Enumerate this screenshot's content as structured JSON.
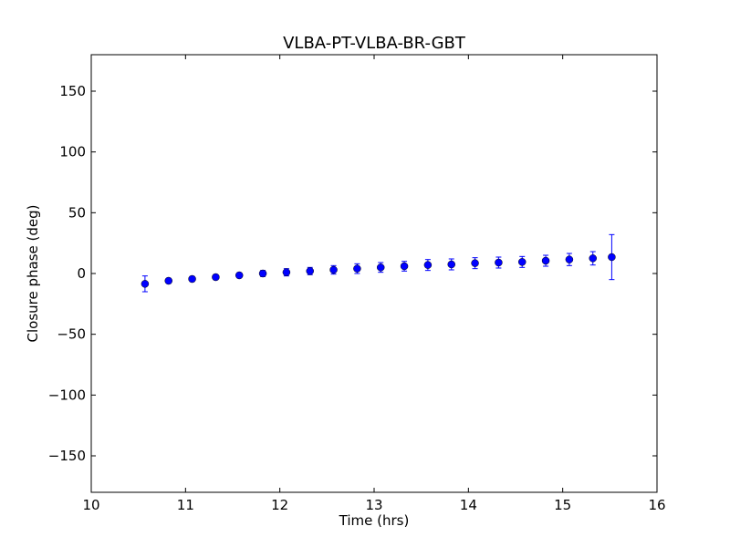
{
  "chart_data": {
    "type": "scatter",
    "title": "VLBA-PT-VLBA-BR-GBT",
    "xlabel": "Time (hrs)",
    "ylabel": "Closure phase (deg)",
    "xlim": [
      10,
      16
    ],
    "ylim": [
      -180,
      180
    ],
    "xticks": [
      10,
      11,
      12,
      13,
      14,
      15,
      16
    ],
    "xtick_labels": [
      "10",
      "11",
      "12",
      "13",
      "14",
      "15",
      "16"
    ],
    "yticks": [
      -150,
      -100,
      -50,
      0,
      50,
      100,
      150
    ],
    "ytick_labels": [
      "−150",
      "−100",
      "−50",
      "0",
      "50",
      "100",
      "150"
    ],
    "grid": false,
    "legend": "none",
    "marker_color": "#0000ff",
    "errorbar_color": "#0000ff",
    "series": [
      {
        "x": [
          10.57,
          10.82,
          11.07,
          11.32,
          11.57,
          11.82,
          12.07,
          12.32,
          12.57,
          12.82,
          13.07,
          13.32,
          13.57,
          13.82,
          14.07,
          14.32,
          14.57,
          14.82,
          15.07,
          15.32,
          15.52
        ],
        "y": [
          -8.5,
          -6.0,
          -4.5,
          -3.0,
          -1.5,
          0.0,
          1.0,
          2.0,
          3.0,
          4.0,
          5.0,
          6.0,
          7.0,
          7.5,
          8.5,
          9.0,
          9.5,
          10.5,
          11.5,
          12.5,
          13.5
        ],
        "yerr": [
          6.5,
          2.0,
          2.0,
          2.0,
          2.0,
          2.5,
          3.0,
          3.0,
          3.5,
          4.0,
          4.0,
          4.0,
          4.5,
          4.5,
          4.5,
          4.5,
          4.5,
          4.5,
          5.0,
          5.5,
          18.5
        ]
      }
    ]
  }
}
